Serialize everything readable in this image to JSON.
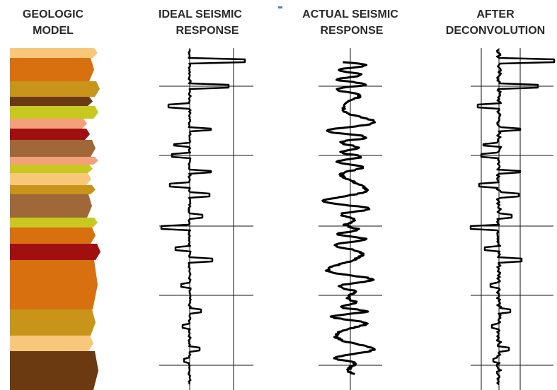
{
  "headings": [
    {
      "lines": [
        "GEOLOGIC",
        "MODEL"
      ]
    },
    {
      "lines": [
        "IDEAL SEISMIC",
        "RESPONSE"
      ]
    },
    {
      "lines": [
        "ACTUAL SEISMIC",
        "RESPONSE"
      ]
    },
    {
      "lines": [
        "AFTER",
        "DECONVOLUTION"
      ]
    }
  ]
}
